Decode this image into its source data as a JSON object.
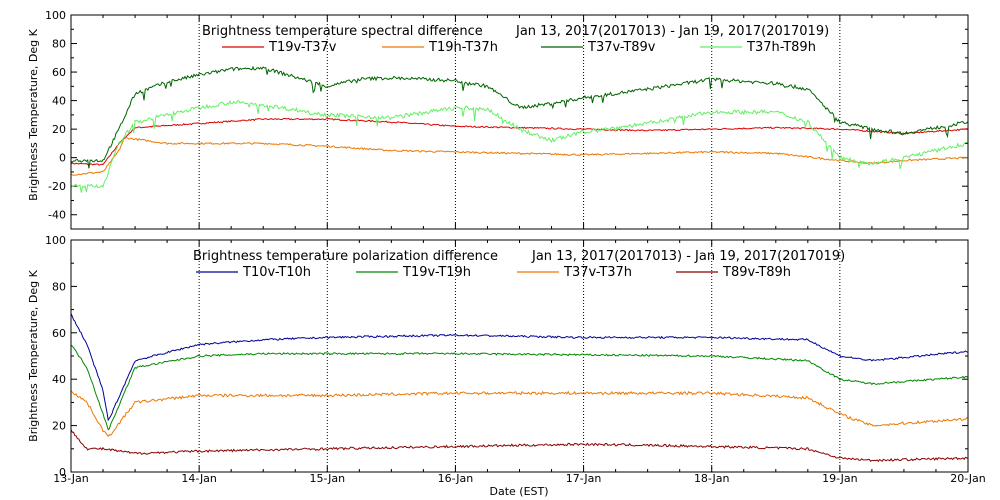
{
  "figure": {
    "xlabel": "Date (EST)"
  },
  "chart_data": [
    {
      "type": "line",
      "title": "Brightness temperature spectral difference",
      "date_range": "Jan 13, 2017(2017013) - Jan 19, 2017(2017019)",
      "ylabel": "Brightness Temperature, Deg K",
      "ylim": [
        -50,
        100
      ],
      "yticks": [
        -40,
        -20,
        0,
        20,
        40,
        60,
        80,
        100
      ],
      "x_tick_labels": [
        "13-Jan",
        "14-Jan",
        "15-Jan",
        "16-Jan",
        "17-Jan",
        "18-Jan",
        "19-Jan",
        "20-Jan"
      ],
      "xlim": [
        "2017-01-13",
        "2017-01-20"
      ],
      "grid": "vertical dotted at day boundaries",
      "legend_placement": "top",
      "series": [
        {
          "name": "T19v-T37v",
          "color": "#dd0000",
          "noise": 0.5,
          "points": [
            [
              "2017-01-13 00:00",
              -4
            ],
            [
              "2017-01-13 06:00",
              -5
            ],
            [
              "2017-01-13 09:00",
              10
            ],
            [
              "2017-01-13 12:00",
              21
            ],
            [
              "2017-01-14 00:00",
              24
            ],
            [
              "2017-01-14 12:00",
              27
            ],
            [
              "2017-01-15 00:00",
              27
            ],
            [
              "2017-01-15 12:00",
              25
            ],
            [
              "2017-01-16 00:00",
              22
            ],
            [
              "2017-01-16 12:00",
              21
            ],
            [
              "2017-01-17 00:00",
              20
            ],
            [
              "2017-01-17 12:00",
              19
            ],
            [
              "2017-01-18 00:00",
              20
            ],
            [
              "2017-01-18 12:00",
              21
            ],
            [
              "2017-01-19 00:00",
              20
            ],
            [
              "2017-01-19 12:00",
              17
            ],
            [
              "2017-01-20 00:00",
              20
            ]
          ]
        },
        {
          "name": "T19h-T37h",
          "color": "#ee7700",
          "noise": 0.6,
          "points": [
            [
              "2017-01-13 00:00",
              -12
            ],
            [
              "2017-01-13 06:00",
              -10
            ],
            [
              "2017-01-13 09:00",
              5
            ],
            [
              "2017-01-13 10:00",
              14
            ],
            [
              "2017-01-13 18:00",
              10
            ],
            [
              "2017-01-14 12:00",
              10
            ],
            [
              "2017-01-15 00:00",
              8
            ],
            [
              "2017-01-15 12:00",
              5
            ],
            [
              "2017-01-16 00:00",
              4
            ],
            [
              "2017-01-16 12:00",
              3
            ],
            [
              "2017-01-17 00:00",
              2
            ],
            [
              "2017-01-17 12:00",
              3
            ],
            [
              "2017-01-18 00:00",
              4
            ],
            [
              "2017-01-18 12:00",
              3
            ],
            [
              "2017-01-19 00:00",
              -2
            ],
            [
              "2017-01-19 06:00",
              -4
            ],
            [
              "2017-01-19 12:00",
              -2
            ],
            [
              "2017-01-20 00:00",
              0
            ]
          ]
        },
        {
          "name": "T37v-T89v",
          "color": "#006400",
          "noise": 1.2,
          "points": [
            [
              "2017-01-13 00:00",
              -2
            ],
            [
              "2017-01-13 06:00",
              -2
            ],
            [
              "2017-01-13 09:00",
              20
            ],
            [
              "2017-01-13 12:00",
              45
            ],
            [
              "2017-01-13 18:00",
              53
            ],
            [
              "2017-01-14 00:00",
              58
            ],
            [
              "2017-01-14 06:00",
              62
            ],
            [
              "2017-01-14 12:00",
              63
            ],
            [
              "2017-01-15 00:00",
              50
            ],
            [
              "2017-01-15 06:00",
              55
            ],
            [
              "2017-01-15 12:00",
              56
            ],
            [
              "2017-01-16 00:00",
              54
            ],
            [
              "2017-01-16 06:00",
              50
            ],
            [
              "2017-01-16 12:00",
              35
            ],
            [
              "2017-01-16 18:00",
              38
            ],
            [
              "2017-01-17 00:00",
              42
            ],
            [
              "2017-01-17 12:00",
              48
            ],
            [
              "2017-01-18 00:00",
              55
            ],
            [
              "2017-01-18 12:00",
              52
            ],
            [
              "2017-01-18 18:00",
              48
            ],
            [
              "2017-01-19 00:00",
              25
            ],
            [
              "2017-01-19 06:00",
              20
            ],
            [
              "2017-01-19 12:00",
              17
            ],
            [
              "2017-01-20 00:00",
              25
            ]
          ]
        },
        {
          "name": "T37h-T89h",
          "color": "#66ee66",
          "noise": 1.4,
          "points": [
            [
              "2017-01-13 00:00",
              -20
            ],
            [
              "2017-01-13 06:00",
              -20
            ],
            [
              "2017-01-13 09:00",
              10
            ],
            [
              "2017-01-13 12:00",
              25
            ],
            [
              "2017-01-14 00:00",
              35
            ],
            [
              "2017-01-14 06:00",
              39
            ],
            [
              "2017-01-14 12:00",
              37
            ],
            [
              "2017-01-15 00:00",
              30
            ],
            [
              "2017-01-15 12:00",
              28
            ],
            [
              "2017-01-16 00:00",
              35
            ],
            [
              "2017-01-16 06:00",
              34
            ],
            [
              "2017-01-16 12:00",
              20
            ],
            [
              "2017-01-16 18:00",
              12
            ],
            [
              "2017-01-17 00:00",
              18
            ],
            [
              "2017-01-17 12:00",
              24
            ],
            [
              "2017-01-18 00:00",
              32
            ],
            [
              "2017-01-18 12:00",
              32
            ],
            [
              "2017-01-18 18:00",
              25
            ],
            [
              "2017-01-19 00:00",
              0
            ],
            [
              "2017-01-19 06:00",
              -4
            ],
            [
              "2017-01-19 12:00",
              0
            ],
            [
              "2017-01-20 00:00",
              10
            ]
          ]
        }
      ]
    },
    {
      "type": "line",
      "title": "Brightness temperature polarization difference",
      "date_range": "Jan 13, 2017(2017013) - Jan 19, 2017(2017019)",
      "ylabel": "Brightness Temperature, Deg K",
      "ylim": [
        0,
        100
      ],
      "yticks": [
        0,
        20,
        40,
        60,
        80,
        100
      ],
      "x_tick_labels": [
        "13-Jan",
        "14-Jan",
        "15-Jan",
        "16-Jan",
        "17-Jan",
        "18-Jan",
        "19-Jan",
        "20-Jan"
      ],
      "xlim": [
        "2017-01-13",
        "2017-01-20"
      ],
      "grid": "vertical dotted at day boundaries",
      "legend_placement": "top",
      "series": [
        {
          "name": "T10v-T10h",
          "color": "#000099",
          "noise": 0.4,
          "points": [
            [
              "2017-01-13 00:00",
              68
            ],
            [
              "2017-01-13 03:00",
              55
            ],
            [
              "2017-01-13 06:00",
              35
            ],
            [
              "2017-01-13 07:00",
              22
            ],
            [
              "2017-01-13 12:00",
              48
            ],
            [
              "2017-01-14 00:00",
              55
            ],
            [
              "2017-01-14 12:00",
              57
            ],
            [
              "2017-01-15 00:00",
              58
            ],
            [
              "2017-01-16 00:00",
              59
            ],
            [
              "2017-01-17 00:00",
              58
            ],
            [
              "2017-01-18 00:00",
              58
            ],
            [
              "2017-01-18 18:00",
              57
            ],
            [
              "2017-01-19 00:00",
              50
            ],
            [
              "2017-01-19 06:00",
              48
            ],
            [
              "2017-01-20 00:00",
              52
            ]
          ]
        },
        {
          "name": "T19v-T19h",
          "color": "#008800",
          "noise": 0.4,
          "points": [
            [
              "2017-01-13 00:00",
              55
            ],
            [
              "2017-01-13 03:00",
              45
            ],
            [
              "2017-01-13 06:00",
              25
            ],
            [
              "2017-01-13 07:00",
              18
            ],
            [
              "2017-01-13 12:00",
              45
            ],
            [
              "2017-01-14 00:00",
              50
            ],
            [
              "2017-01-14 12:00",
              51
            ],
            [
              "2017-01-16 00:00",
              51
            ],
            [
              "2017-01-18 00:00",
              50
            ],
            [
              "2017-01-18 18:00",
              48
            ],
            [
              "2017-01-19 00:00",
              40
            ],
            [
              "2017-01-19 06:00",
              38
            ],
            [
              "2017-01-20 00:00",
              41
            ]
          ]
        },
        {
          "name": "T37v-T37h",
          "color": "#ee7700",
          "noise": 0.6,
          "points": [
            [
              "2017-01-13 00:00",
              35
            ],
            [
              "2017-01-13 03:00",
              30
            ],
            [
              "2017-01-13 06:00",
              18
            ],
            [
              "2017-01-13 07:00",
              15
            ],
            [
              "2017-01-13 12:00",
              30
            ],
            [
              "2017-01-14 00:00",
              33
            ],
            [
              "2017-01-15 00:00",
              33
            ],
            [
              "2017-01-16 00:00",
              34
            ],
            [
              "2017-01-17 00:00",
              34
            ],
            [
              "2017-01-18 00:00",
              34
            ],
            [
              "2017-01-18 18:00",
              32
            ],
            [
              "2017-01-19 00:00",
              25
            ],
            [
              "2017-01-19 06:00",
              20
            ],
            [
              "2017-01-20 00:00",
              23
            ]
          ]
        },
        {
          "name": "T89v-T89h",
          "color": "#880000",
          "noise": 0.5,
          "points": [
            [
              "2017-01-13 00:00",
              18
            ],
            [
              "2017-01-13 03:00",
              10
            ],
            [
              "2017-01-13 06:00",
              10
            ],
            [
              "2017-01-13 12:00",
              8
            ],
            [
              "2017-01-14 00:00",
              9
            ],
            [
              "2017-01-15 00:00",
              10
            ],
            [
              "2017-01-16 00:00",
              11
            ],
            [
              "2017-01-17 00:00",
              12
            ],
            [
              "2017-01-18 00:00",
              11
            ],
            [
              "2017-01-18 18:00",
              10
            ],
            [
              "2017-01-19 00:00",
              6
            ],
            [
              "2017-01-19 06:00",
              5
            ],
            [
              "2017-01-20 00:00",
              6
            ]
          ]
        }
      ]
    }
  ]
}
